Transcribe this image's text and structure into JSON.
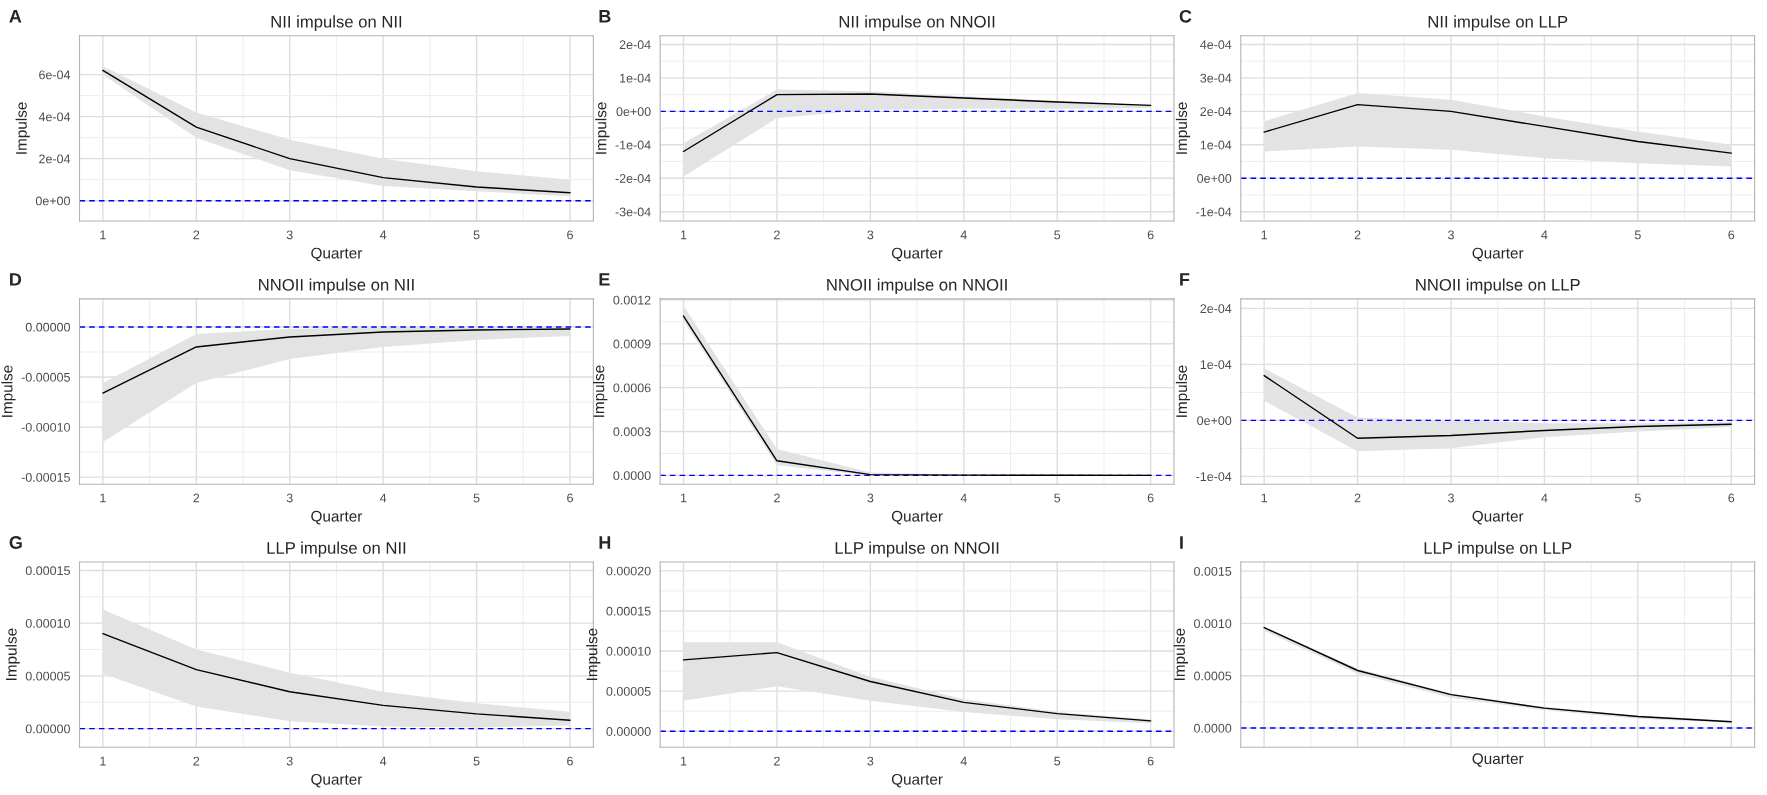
{
  "chart_data": [
    {
      "type": "line",
      "title": "NII impulse on NII",
      "annotations": [
        "A"
      ],
      "xlabel": "Quarter",
      "ylabel": "Impulse",
      "x": [
        1,
        2,
        3,
        4,
        5,
        6
      ],
      "xlim": [
        0.75,
        6.25
      ],
      "xticks": [
        1,
        2,
        3,
        4,
        5,
        6
      ],
      "ylim": [
        -9.7e-05,
        0.000785
      ],
      "yticks": [
        {
          "value": 0,
          "label": "0e+00"
        },
        {
          "value": 0.0002,
          "label": "2e-04"
        },
        {
          "value": 0.0004,
          "label": "4e-04"
        },
        {
          "value": 0.0006,
          "label": "6e-04"
        }
      ],
      "grid": true,
      "ref_lines": [
        {
          "axis": "y",
          "value": 0,
          "color": "#0000ff",
          "line_style": "dashed"
        }
      ],
      "series": [
        {
          "color": "#000000",
          "values": [
            0.00062,
            0.00035,
            0.0002,
            0.00011,
            6.5e-05,
            3.8e-05
          ],
          "lower": [
            0.0006,
            0.0003,
            0.000145,
            7e-05,
            4.5e-05,
            2e-05
          ],
          "upper": [
            0.00064,
            0.00042,
            0.00029,
            0.0002,
            0.00014,
            0.0001
          ]
        }
      ]
    },
    {
      "type": "line",
      "title": "NII impulse on NNOII",
      "annotations": [
        "B"
      ],
      "xlabel": "Quarter",
      "ylabel": "Impulse",
      "x": [
        1,
        2,
        3,
        4,
        5,
        6
      ],
      "xlim": [
        0.75,
        6.25
      ],
      "xticks": [
        1,
        2,
        3,
        4,
        5,
        6
      ],
      "ylim": [
        -0.000328,
        0.000226
      ],
      "yticks": [
        {
          "value": -0.0003,
          "label": "-3e-04"
        },
        {
          "value": -0.0002,
          "label": "-2e-04"
        },
        {
          "value": -0.0001,
          "label": "-1e-04"
        },
        {
          "value": 0,
          "label": "0e+00"
        },
        {
          "value": 0.0001,
          "label": "1e-04"
        },
        {
          "value": 0.0002,
          "label": "2e-04"
        }
      ],
      "grid": true,
      "ref_lines": [
        {
          "axis": "y",
          "value": 0,
          "color": "#0000ff",
          "line_style": "dashed"
        }
      ],
      "series": [
        {
          "color": "#000000",
          "values": [
            -0.00012,
            5e-05,
            5.2e-05,
            4e-05,
            2.8e-05,
            1.8e-05
          ],
          "lower": [
            -0.000195,
            -2e-05,
            5e-06,
            8e-06,
            8e-06,
            1e-05
          ],
          "upper": [
            -9.5e-05,
            6.5e-05,
            6e-05,
            4.5e-05,
            3.2e-05,
            2e-05
          ]
        }
      ]
    },
    {
      "type": "line",
      "title": "NII impulse on LLP",
      "annotations": [
        "C"
      ],
      "xlabel": "Quarter",
      "ylabel": "Impulse",
      "x": [
        1,
        2,
        3,
        4,
        5,
        6
      ],
      "xlim": [
        0.75,
        6.25
      ],
      "xticks": [
        1,
        2,
        3,
        4,
        5,
        6
      ],
      "ylim": [
        -0.000128,
        0.000426
      ],
      "yticks": [
        {
          "value": -0.0001,
          "label": "-1e-04"
        },
        {
          "value": 0,
          "label": "0e+00"
        },
        {
          "value": 0.0001,
          "label": "1e-04"
        },
        {
          "value": 0.0002,
          "label": "2e-04"
        },
        {
          "value": 0.0003,
          "label": "3e-04"
        },
        {
          "value": 0.0004,
          "label": "4e-04"
        }
      ],
      "grid": true,
      "ref_lines": [
        {
          "axis": "y",
          "value": 0,
          "color": "#0000ff",
          "line_style": "dashed"
        }
      ],
      "series": [
        {
          "color": "#000000",
          "values": [
            0.000138,
            0.00022,
            0.0002,
            0.000155,
            0.00011,
            7.5e-05
          ],
          "lower": [
            8e-05,
            9.5e-05,
            8.5e-05,
            6e-05,
            4.5e-05,
            3.5e-05
          ],
          "upper": [
            0.00017,
            0.000255,
            0.000235,
            0.000185,
            0.00014,
            0.0001
          ]
        }
      ]
    },
    {
      "type": "line",
      "title": "NNOII impulse on NII",
      "annotations": [
        "D"
      ],
      "xlabel": "Quarter",
      "ylabel": "Impulse",
      "x": [
        1,
        2,
        3,
        4,
        5,
        6
      ],
      "xlim": [
        0.75,
        6.25
      ],
      "xticks": [
        1,
        2,
        3,
        4,
        5,
        6
      ],
      "ylim": [
        -0.000157,
        2.8e-05
      ],
      "yticks": [
        {
          "value": -0.00015,
          "label": "-0.00015"
        },
        {
          "value": -0.0001,
          "label": "-0.00010"
        },
        {
          "value": -5e-05,
          "label": "-0.00005"
        },
        {
          "value": 0,
          "label": "0.00000"
        }
      ],
      "grid": true,
      "ref_lines": [
        {
          "axis": "y",
          "value": 0,
          "color": "#0000ff",
          "line_style": "dashed"
        }
      ],
      "series": [
        {
          "color": "#000000",
          "values": [
            -6.6e-05,
            -2e-05,
            -1e-05,
            -5e-06,
            -3e-06,
            -2e-06
          ],
          "lower": [
            -0.000115,
            -5.6e-05,
            -3.2e-05,
            -2e-05,
            -1.3e-05,
            -9e-06
          ],
          "upper": [
            -5.6e-05,
            -7e-06,
            -2e-06,
            0,
            5e-07,
            5e-07
          ]
        }
      ]
    },
    {
      "type": "line",
      "title": "NNOII impulse on NNOII",
      "annotations": [
        "E"
      ],
      "xlabel": "Quarter",
      "ylabel": "Impulse",
      "x": [
        1,
        2,
        3,
        4,
        5,
        6
      ],
      "xlim": [
        0.75,
        6.25
      ],
      "xticks": [
        1,
        2,
        3,
        4,
        5,
        6
      ],
      "ylim": [
        -6e-05,
        0.001207
      ],
      "yticks": [
        {
          "value": 0,
          "label": "0.0000"
        },
        {
          "value": 0.0003,
          "label": "0.0003"
        },
        {
          "value": 0.0006,
          "label": "0.0006"
        },
        {
          "value": 0.0009,
          "label": "0.0009"
        },
        {
          "value": 0.0012,
          "label": "0.0012"
        }
      ],
      "grid": true,
      "ref_lines": [
        {
          "axis": "y",
          "value": 0,
          "color": "#0000ff",
          "line_style": "dashed"
        }
      ],
      "series": [
        {
          "color": "#000000",
          "values": [
            0.00109,
            0.0001,
            5e-06,
            2e-06,
            1e-06,
            0
          ],
          "lower": [
            0.00106,
            7e-05,
            0,
            0,
            0,
            0
          ],
          "upper": [
            0.00116,
            0.00018,
            2e-05,
            5e-06,
            2e-06,
            1e-06
          ]
        }
      ]
    },
    {
      "type": "line",
      "title": "NNOII impulse on LLP",
      "annotations": [
        "F"
      ],
      "xlabel": "Quarter",
      "ylabel": "Impulse",
      "x": [
        1,
        2,
        3,
        4,
        5,
        6
      ],
      "xlim": [
        0.75,
        6.25
      ],
      "xticks": [
        1,
        2,
        3,
        4,
        5,
        6
      ],
      "ylim": [
        -0.000114,
        0.000217
      ],
      "yticks": [
        {
          "value": -0.0001,
          "label": "-1e-04"
        },
        {
          "value": 0,
          "label": "0e+00"
        },
        {
          "value": 0.0001,
          "label": "1e-04"
        },
        {
          "value": 0.0002,
          "label": "2e-04"
        }
      ],
      "grid": true,
      "ref_lines": [
        {
          "axis": "y",
          "value": 0,
          "color": "#0000ff",
          "line_style": "dashed"
        }
      ],
      "series": [
        {
          "color": "#000000",
          "values": [
            8e-05,
            -3.2e-05,
            -2.7e-05,
            -1.8e-05,
            -1.1e-05,
            -7e-06
          ],
          "lower": [
            3.5e-05,
            -5.5e-05,
            -5e-05,
            -3e-05,
            -2e-05,
            -1.2e-05
          ],
          "upper": [
            9.3e-05,
            5e-06,
            0,
            -5e-06,
            -5e-06,
            -3e-06
          ]
        }
      ]
    },
    {
      "type": "line",
      "title": "LLP impulse on NII",
      "annotations": [
        "G"
      ],
      "xlabel": "Quarter",
      "ylabel": "Impulse",
      "x": [
        1,
        2,
        3,
        4,
        5,
        6
      ],
      "xlim": [
        0.75,
        6.25
      ],
      "xticks": [
        1,
        2,
        3,
        4,
        5,
        6
      ],
      "ylim": [
        -1.77e-05,
        0.000158
      ],
      "yticks": [
        {
          "value": 0,
          "label": "0.00000"
        },
        {
          "value": 5e-05,
          "label": "0.00005"
        },
        {
          "value": 0.0001,
          "label": "0.00010"
        },
        {
          "value": 0.00015,
          "label": "0.00015"
        }
      ],
      "grid": true,
      "ref_lines": [
        {
          "axis": "y",
          "value": 0,
          "color": "#0000ff",
          "line_style": "dashed"
        }
      ],
      "series": [
        {
          "color": "#000000",
          "values": [
            9e-05,
            5.6e-05,
            3.5e-05,
            2.2e-05,
            1.4e-05,
            8e-06
          ],
          "lower": [
            5.2e-05,
            2.1e-05,
            7e-06,
            2e-06,
            1e-06,
            3e-06
          ],
          "upper": [
            0.000113,
            7.5e-05,
            5.3e-05,
            3.5e-05,
            2.4e-05,
            1.6e-05
          ]
        }
      ]
    },
    {
      "type": "line",
      "title": "LLP impulse on NNOII",
      "annotations": [
        "H"
      ],
      "xlabel": "Quarter",
      "ylabel": "Impulse",
      "x": [
        1,
        2,
        3,
        4,
        5,
        6
      ],
      "xlim": [
        0.75,
        6.25
      ],
      "xticks": [
        1,
        2,
        3,
        4,
        5,
        6
      ],
      "ylim": [
        -2e-05,
        0.000211
      ],
      "yticks": [
        {
          "value": 0,
          "label": "0.00000"
        },
        {
          "value": 5e-05,
          "label": "0.00005"
        },
        {
          "value": 0.0001,
          "label": "0.00010"
        },
        {
          "value": 0.00015,
          "label": "0.00015"
        },
        {
          "value": 0.0002,
          "label": "0.00020"
        }
      ],
      "grid": true,
      "ref_lines": [
        {
          "axis": "y",
          "value": 0,
          "color": "#0000ff",
          "line_style": "dashed"
        }
      ],
      "series": [
        {
          "color": "#000000",
          "values": [
            8.9e-05,
            9.8e-05,
            6.2e-05,
            3.6e-05,
            2.2e-05,
            1.3e-05
          ],
          "lower": [
            3.8e-05,
            5.6e-05,
            3.8e-05,
            2.4e-05,
            1.5e-05,
            1e-05
          ],
          "upper": [
            0.000111,
            0.000111,
            6.8e-05,
            4e-05,
            2.4e-05,
            1.5e-05
          ]
        }
      ]
    },
    {
      "type": "line",
      "title": "LLP impulse on LLP",
      "annotations": [
        "I"
      ],
      "xlabel": "Quarter",
      "ylabel": "Impulse",
      "x": [
        1,
        2,
        3,
        4,
        5,
        6
      ],
      "xlim": [
        0.75,
        6.25
      ],
      "xticks": [
        {
          "value": 1,
          "label": null
        },
        {
          "value": 2,
          "label": null
        },
        {
          "value": 3,
          "label": null
        },
        {
          "value": 4,
          "label": null
        },
        {
          "value": 5,
          "label": null
        },
        {
          "value": 6,
          "label": null
        }
      ],
      "tick_labels": "y",
      "ylim": [
        -0.000184,
        0.001587
      ],
      "yticks": [
        {
          "value": 0,
          "label": "0.0000"
        },
        {
          "value": 0.0005,
          "label": "0.0005"
        },
        {
          "value": 0.001,
          "label": "0.0010"
        },
        {
          "value": 0.0015,
          "label": "0.0015"
        }
      ],
      "grid": true,
      "ref_lines": [
        {
          "axis": "y",
          "value": 0,
          "color": "#0000ff",
          "line_style": "dashed"
        }
      ],
      "series": [
        {
          "color": "#000000",
          "values": [
            0.00096,
            0.00055,
            0.00032,
            0.00019,
            0.00011,
            6e-05
          ],
          "lower": [
            0.00093,
            0.00052,
            0.00029,
            0.00017,
            9e-05,
            5e-05
          ],
          "upper": [
            0.00097,
            0.00057,
            0.00033,
            0.0002,
            0.00012,
            7e-05
          ]
        }
      ]
    }
  ]
}
